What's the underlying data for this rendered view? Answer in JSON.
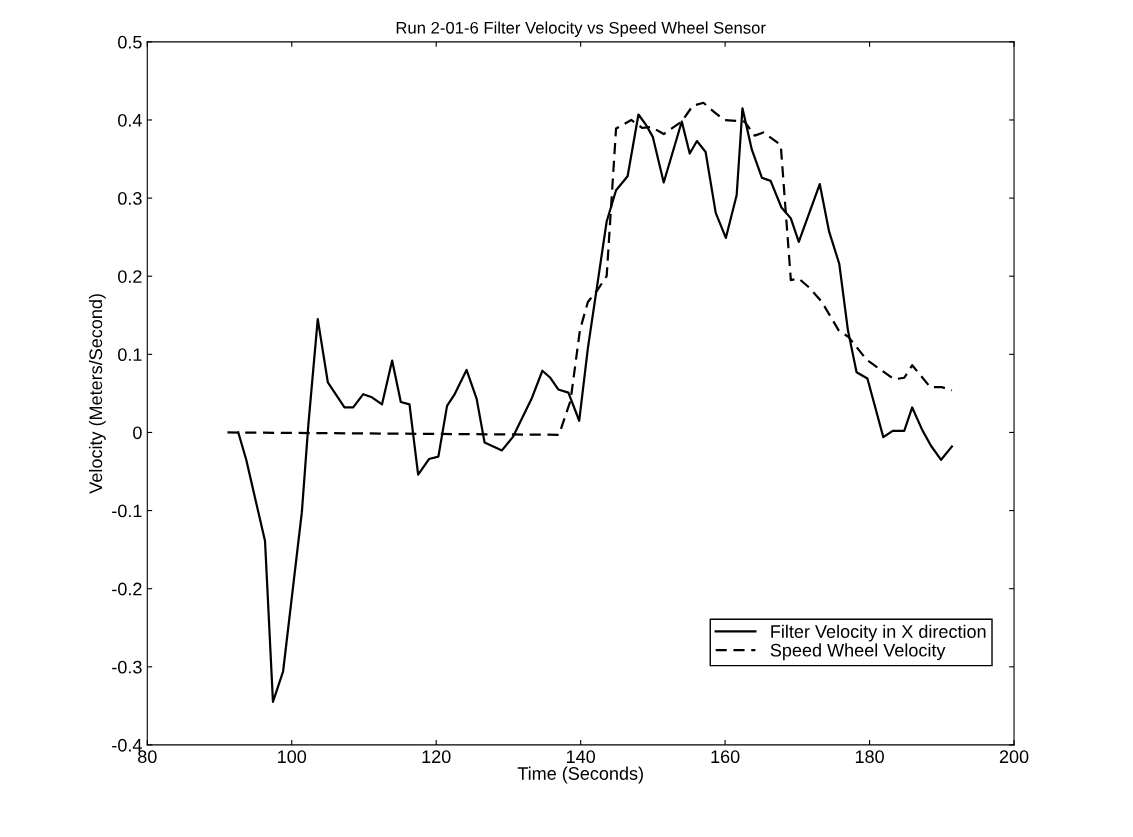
{
  "chart_data": {
    "type": "line",
    "title": "Run 2-01-6 Filter Velocity vs Speed Wheel Sensor",
    "xlabel": "Time (Seconds)",
    "ylabel": "Velocity (Meters/Second)",
    "xlim": [
      80,
      200
    ],
    "xticks": [
      80,
      100,
      120,
      140,
      160,
      180,
      200
    ],
    "ylim": [
      -0.4,
      0.5
    ],
    "yticks": [
      -0.4,
      -0.3,
      -0.2,
      -0.1,
      0,
      0.1,
      0.2,
      0.3,
      0.4,
      0.5
    ],
    "grid": false,
    "legend": "bottom right",
    "marker": "none",
    "series": [
      {
        "name": "Filter Velocity in X direction",
        "color": "#000000",
        "line_style": "solid",
        "x": [
          92.6,
          93.7,
          96.3,
          97.4,
          98.8,
          101.4,
          102.3,
          103.6,
          105.0,
          107.3,
          108.5,
          109.9,
          111.1,
          112.5,
          113.9,
          115.1,
          116.3,
          117.5,
          119.0,
          120.3,
          121.5,
          122.5,
          124.2,
          125.6,
          126.7,
          129.1,
          130.6,
          133.2,
          134.7,
          135.8,
          136.9,
          138.3,
          139.8,
          141.0,
          142.3,
          143.6,
          144.9,
          146.5,
          148.0,
          149.1,
          150.0,
          151.5,
          154.0,
          155.1,
          156.1,
          157.3,
          158.7,
          160.1,
          161.6,
          162.4,
          163.7,
          165.1,
          166.3,
          167.8,
          169.1,
          170.2,
          173.1,
          174.4,
          175.8,
          177.0,
          178.2,
          179.7,
          181.9,
          183.2,
          184.8,
          185.9,
          187.3,
          188.5,
          189.9,
          191.4
        ],
        "values": [
          0,
          -0.035,
          -0.139,
          -0.345,
          -0.306,
          -0.102,
          0.01,
          0.145,
          0.064,
          0.032,
          0.032,
          0.049,
          0.045,
          0.036,
          0.092,
          0.039,
          0.036,
          -0.054,
          -0.034,
          -0.031,
          0.034,
          0.048,
          0.08,
          0.043,
          -0.013,
          -0.023,
          -0.006,
          0.043,
          0.079,
          0.07,
          0.055,
          0.051,
          0.015,
          0.108,
          0.189,
          0.27,
          0.31,
          0.328,
          0.407,
          0.393,
          0.378,
          0.32,
          0.398,
          0.357,
          0.373,
          0.359,
          0.281,
          0.249,
          0.304,
          0.415,
          0.362,
          0.326,
          0.322,
          0.288,
          0.274,
          0.244,
          0.318,
          0.257,
          0.216,
          0.131,
          0.077,
          0.069,
          -0.006,
          0.002,
          0.002,
          0.032,
          0.003,
          -0.017,
          -0.035,
          -0.018
        ]
      },
      {
        "name": "Speed Wheel Velocity",
        "color": "#000000",
        "line_style": "dashed",
        "x": [
          91.1,
          137.0,
          138.6,
          139.9,
          141.0,
          142.3,
          143.6,
          144.9,
          147.0,
          148.5,
          149.8,
          151.5,
          154.0,
          155.5,
          157.0,
          158.5,
          159.9,
          162.7,
          164.1,
          165.3,
          167.7,
          169.1,
          170.2,
          171.7,
          173.4,
          175.7,
          177.1,
          179.6,
          183.4,
          184.8,
          185.9,
          188.4,
          190.0,
          191.4
        ],
        "values": [
          0,
          -0.003,
          0.041,
          0.131,
          0.167,
          0.182,
          0.2,
          0.389,
          0.4,
          0.39,
          0.391,
          0.382,
          0.398,
          0.418,
          0.422,
          0.41,
          0.4,
          0.398,
          0.38,
          0.384,
          0.368,
          0.195,
          0.197,
          0.185,
          0.167,
          0.131,
          0.122,
          0.093,
          0.068,
          0.07,
          0.086,
          0.058,
          0.058,
          0.054
        ]
      }
    ]
  }
}
